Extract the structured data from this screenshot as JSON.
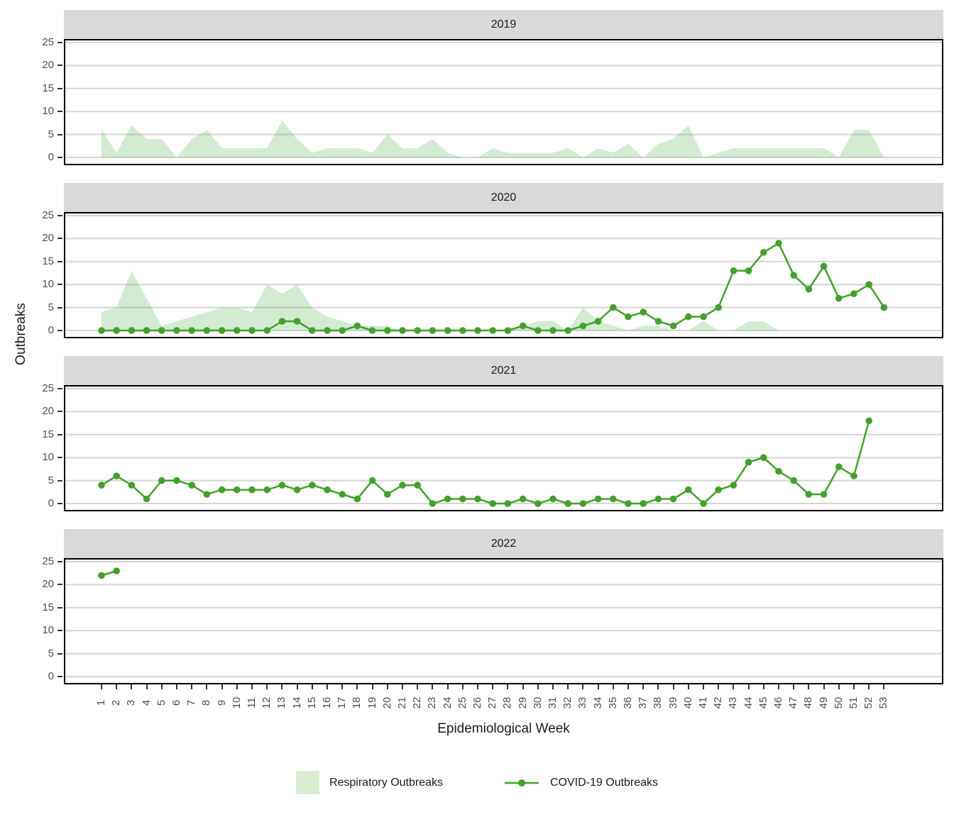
{
  "figure": {
    "y_axis_title": "Outbreaks",
    "x_axis_title": "Epidemiological Week"
  },
  "legend": {
    "respiratory_label": "Respiratory Outbreaks",
    "covid_label": "COVID-19 Outbreaks"
  },
  "colors": {
    "covid_line": "#43a02c",
    "respiratory_fill": "rgba(77,175,74,0.25)",
    "respiratory_swatch": "#d9ecd2",
    "strip_bg": "#d9d9d9",
    "gridline": "#d4d4d4",
    "axis_text": "#4d4d4d",
    "panel_border": "#000000"
  },
  "chart_data": {
    "type": "area+line, faceted by year",
    "x_label": "Epidemiological Week",
    "y_label": "Outbreaks",
    "ylim": [
      0,
      25
    ],
    "y_ticks": [
      0,
      5,
      10,
      15,
      20,
      25
    ],
    "x_ticks": [
      1,
      2,
      3,
      4,
      5,
      6,
      7,
      8,
      9,
      10,
      11,
      12,
      13,
      14,
      15,
      16,
      17,
      18,
      19,
      20,
      21,
      22,
      23,
      24,
      25,
      26,
      27,
      28,
      29,
      30,
      31,
      32,
      33,
      34,
      35,
      36,
      37,
      38,
      39,
      40,
      41,
      42,
      43,
      44,
      45,
      46,
      47,
      48,
      49,
      50,
      51,
      52,
      53
    ],
    "grid": "horizontal major only",
    "legend_position": "bottom",
    "series_names": [
      "Respiratory Outbreaks",
      "COVID-19 Outbreaks"
    ],
    "facets": [
      {
        "title": "2019",
        "respiratory": [
          6,
          1,
          7,
          4,
          4,
          0,
          4,
          6,
          2,
          2,
          2,
          2,
          8,
          4,
          1,
          2,
          2,
          2,
          1,
          5,
          2,
          2,
          4,
          1,
          0,
          0,
          2,
          1,
          1,
          1,
          1,
          2,
          0,
          2,
          1,
          3,
          0,
          3,
          4,
          7,
          0,
          1,
          2,
          2,
          2,
          2,
          2,
          2,
          2,
          0,
          6,
          6,
          0
        ],
        "covid": null
      },
      {
        "title": "2020",
        "respiratory": [
          4,
          5,
          13,
          7,
          1,
          2,
          3,
          4,
          5,
          5,
          4,
          10,
          8,
          10,
          5,
          3,
          2,
          1,
          1,
          1,
          0,
          0,
          0,
          0,
          0,
          0,
          0,
          0,
          1,
          2,
          2,
          0,
          5,
          2,
          1,
          0,
          1,
          1,
          0,
          0,
          2,
          0,
          0,
          2,
          2,
          0,
          0,
          0,
          0,
          0,
          0,
          0,
          0
        ],
        "covid": [
          0,
          0,
          0,
          0,
          0,
          0,
          0,
          0,
          0,
          0,
          0,
          0,
          2,
          2,
          0,
          0,
          0,
          1,
          0,
          0,
          0,
          0,
          0,
          0,
          0,
          0,
          0,
          0,
          1,
          0,
          0,
          0,
          1,
          2,
          5,
          3,
          4,
          2,
          1,
          3,
          3,
          5,
          13,
          13,
          17,
          19,
          12,
          9,
          14,
          7,
          8,
          10,
          5
        ]
      },
      {
        "title": "2021",
        "respiratory": null,
        "covid": [
          4,
          6,
          4,
          1,
          5,
          5,
          4,
          2,
          3,
          3,
          3,
          3,
          4,
          3,
          4,
          3,
          2,
          1,
          5,
          2,
          4,
          4,
          0,
          1,
          1,
          1,
          0,
          0,
          1,
          0,
          1,
          0,
          0,
          1,
          1,
          0,
          0,
          1,
          1,
          3,
          0,
          3,
          4,
          9,
          10,
          7,
          5,
          2,
          2,
          8,
          6,
          18
        ]
      },
      {
        "title": "2022",
        "respiratory": null,
        "covid": [
          22,
          23
        ]
      }
    ]
  }
}
